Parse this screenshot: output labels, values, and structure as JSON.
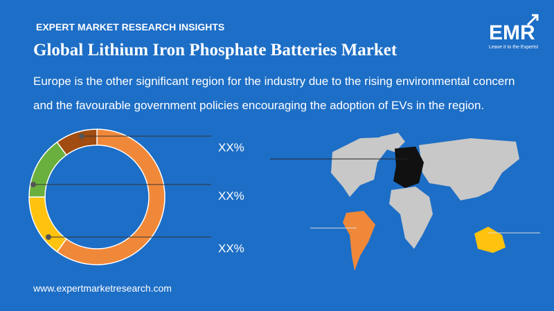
{
  "header": {
    "kicker": "EXPERT MARKET RESEARCH INSIGHTS",
    "title": "Global Lithium Iron Phosphate Batteries Market",
    "logo": "EMR",
    "tagline": "Leave it to the Experts!"
  },
  "description": "Europe is the other significant region for the industry due to the rising environmental concern and the favourable government policies encouraging the adoption of EVs in the region.",
  "chart_data": {
    "type": "pie",
    "donut": true,
    "values": [
      60,
      15,
      15,
      10
    ],
    "colors": [
      "#f0883a",
      "#ffc20e",
      "#6ab03e",
      "#a14c10"
    ],
    "annotations": [
      "XX%",
      "XX%",
      "XX%"
    ]
  },
  "footer": {
    "website": "www.expertmarketresearch.com"
  }
}
